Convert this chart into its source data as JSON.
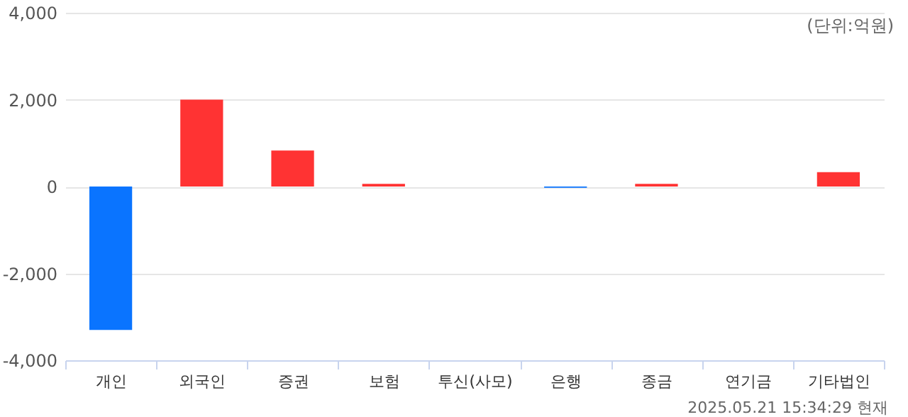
{
  "chart_data": {
    "type": "bar",
    "categories": [
      "개인",
      "외국인",
      "증권",
      "보험",
      "투신(사모)",
      "은행",
      "종금",
      "연기금",
      "기타법인"
    ],
    "values": [
      -3300,
      2000,
      830,
      60,
      0,
      -30,
      60,
      0,
      330
    ],
    "colors": [
      "#0a74ff",
      "#ff3333",
      "#ff3333",
      "#ff3333",
      "#ff3333",
      "#0a74ff",
      "#ff3333",
      "#ff3333",
      "#ff3333"
    ],
    "ylim": [
      -4000,
      4000
    ],
    "yticks": [
      {
        "value": -4000,
        "label": "-4,000"
      },
      {
        "value": -2000,
        "label": "-2,000"
      },
      0,
      {
        "value": 2000,
        "label": "2,000"
      },
      {
        "value": 4000,
        "label": "4,000"
      }
    ],
    "grid": "y",
    "annotations": [
      "(단위:억원)",
      "2025.05.21 15:34:29 현재"
    ]
  }
}
